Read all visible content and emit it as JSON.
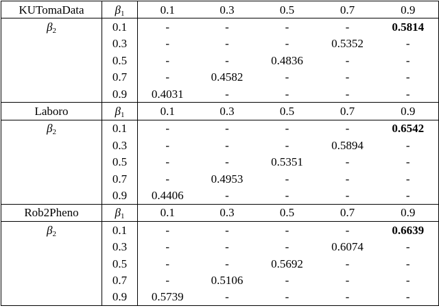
{
  "sections": [
    {
      "dataset": "KUTomaData",
      "col_label": {
        "symbol": "β",
        "subscript": "1"
      },
      "columns": [
        "0.1",
        "0.3",
        "0.5",
        "0.7",
        "0.9"
      ],
      "row_label": {
        "symbol": "β",
        "subscript": "2"
      },
      "rows": [
        {
          "label": "0.1",
          "cells": [
            "-",
            "-",
            "-",
            "-",
            {
              "text": "0.5814",
              "bold": true
            }
          ]
        },
        {
          "label": "0.3",
          "cells": [
            "-",
            "-",
            "-",
            "0.5352",
            "-"
          ]
        },
        {
          "label": "0.5",
          "cells": [
            "-",
            "-",
            "0.4836",
            "-",
            "-"
          ]
        },
        {
          "label": "0.7",
          "cells": [
            "-",
            "0.4582",
            "-",
            "-",
            "-"
          ]
        },
        {
          "label": "0.9",
          "cells": [
            "0.4031",
            "-",
            "-",
            "-",
            "-"
          ]
        }
      ]
    },
    {
      "dataset": "Laboro",
      "col_label": {
        "symbol": "β",
        "subscript": "1"
      },
      "columns": [
        "0.1",
        "0.3",
        "0.5",
        "0.7",
        "0.9"
      ],
      "row_label": {
        "symbol": "β",
        "subscript": "2"
      },
      "rows": [
        {
          "label": "0.1",
          "cells": [
            "-",
            "-",
            "-",
            "-",
            {
              "text": "0.6542",
              "bold": true
            }
          ]
        },
        {
          "label": "0.3",
          "cells": [
            "-",
            "-",
            "-",
            "0.5894",
            "-"
          ]
        },
        {
          "label": "0.5",
          "cells": [
            "-",
            "-",
            "0.5351",
            "-",
            "-"
          ]
        },
        {
          "label": "0.7",
          "cells": [
            "-",
            "0.4953",
            "-",
            "-",
            "-"
          ]
        },
        {
          "label": "0.9",
          "cells": [
            "0.4406",
            "-",
            "-",
            "-",
            "-"
          ]
        }
      ]
    },
    {
      "dataset": "Rob2Pheno",
      "col_label": {
        "symbol": "β",
        "subscript": "1"
      },
      "columns": [
        "0.1",
        "0.3",
        "0.5",
        "0.7",
        "0.9"
      ],
      "row_label": {
        "symbol": "β",
        "subscript": "2"
      },
      "rows": [
        {
          "label": "0.1",
          "cells": [
            "-",
            "-",
            "-",
            "-",
            {
              "text": "0.6639",
              "bold": true
            }
          ]
        },
        {
          "label": "0.3",
          "cells": [
            "-",
            "-",
            "-",
            "0.6074",
            "-"
          ]
        },
        {
          "label": "0.5",
          "cells": [
            "-",
            "-",
            "0.5692",
            "-",
            "-"
          ]
        },
        {
          "label": "0.7",
          "cells": [
            "-",
            "0.5106",
            "-",
            "-",
            "-"
          ]
        },
        {
          "label": "0.9",
          "cells": [
            "0.5739",
            "-",
            "-",
            "-",
            "-"
          ]
        }
      ]
    }
  ]
}
